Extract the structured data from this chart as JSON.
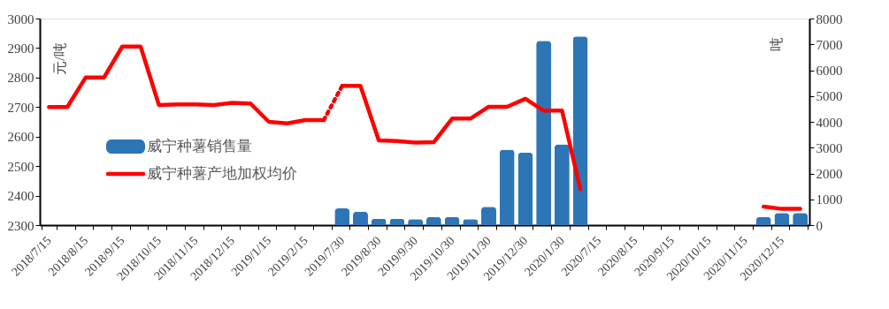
{
  "chart_data": {
    "type": "bar",
    "categories": [
      "2018/7/15",
      null,
      "2018/8/15",
      null,
      "2018/9/15",
      null,
      "2018/10/15",
      null,
      "2018/11/15",
      null,
      "2018/12/15",
      null,
      "2019/1/15",
      null,
      "2019/2/15",
      null,
      "2019/7/30",
      null,
      "2019/8/30",
      null,
      "2019/9/30",
      null,
      "2019/10/30",
      null,
      "2019/11/30",
      null,
      "2019/12/30",
      null,
      "2020/1/30",
      null,
      "2020/7/15",
      null,
      "2020/8/15",
      null,
      "2020/9/15",
      null,
      "2020/10/15",
      null,
      "2020/11/15",
      null,
      "2020/12/15",
      null
    ],
    "series": [
      {
        "name": "威宁种薯销售量",
        "axis": "y2",
        "color": "#2e75b6",
        "values": [
          null,
          null,
          null,
          null,
          null,
          null,
          null,
          null,
          null,
          null,
          null,
          null,
          null,
          null,
          null,
          null,
          650,
          520,
          250,
          250,
          230,
          320,
          320,
          230,
          710,
          2920,
          2810,
          7140,
          3130,
          7310,
          null,
          null,
          null,
          null,
          null,
          null,
          null,
          null,
          null,
          320,
          470,
          470
        ]
      },
      {
        "name": "威宁种薯产地加权均价",
        "type": "line",
        "color": "#ff0000",
        "values": [
          2700,
          2700,
          2800,
          2800,
          2905,
          2905,
          2707,
          2709,
          2709,
          2707,
          2714,
          2712,
          2650,
          2645,
          2656,
          2656,
          2772,
          2772,
          2587,
          2585,
          2580,
          2581,
          2661,
          2661,
          2701,
          2701,
          2728,
          2688,
          2688,
          2422,
          null,
          null,
          null,
          null,
          null,
          null,
          null,
          null,
          null,
          2363,
          2355,
          2355
        ]
      },
      {
        "type": "line",
        "line_style": "dotted",
        "color": "#f20000",
        "values": [
          null,
          null,
          null,
          null,
          null,
          null,
          null,
          null,
          null,
          null,
          null,
          null,
          null,
          null,
          null,
          2656,
          2772,
          null,
          null,
          null,
          null,
          null,
          null,
          null,
          null,
          null,
          null,
          null,
          null,
          null,
          null,
          null,
          null,
          null,
          null,
          null,
          null,
          null,
          null,
          null,
          null,
          null
        ]
      }
    ],
    "ylabel": "元/吨",
    "y2label": "吨",
    "ylim": [
      2300,
      3000
    ],
    "yticks": [
      2300,
      2400,
      2500,
      2600,
      2700,
      2800,
      2900,
      3000
    ],
    "y2lim": [
      0,
      8000
    ],
    "y2ticks": [
      0,
      1000,
      2000,
      3000,
      4000,
      5000,
      6000,
      7000,
      8000
    ],
    "grid": false,
    "legend": "left"
  }
}
